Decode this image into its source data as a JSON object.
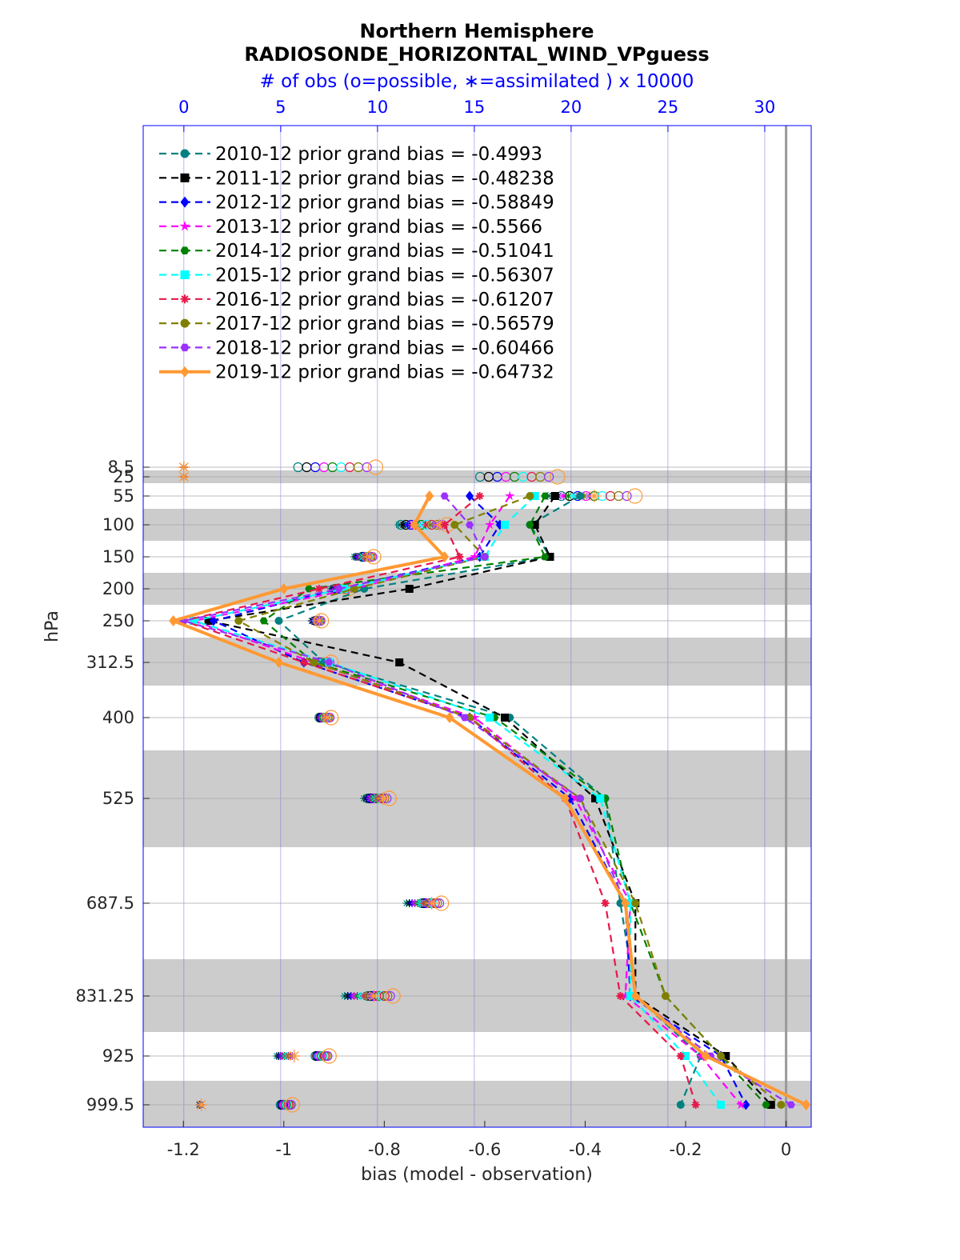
{
  "chart_data": {
    "type": "line",
    "title": "Northern Hemisphere",
    "subtitle": "RADIOSONDE_HORIZONTAL_WIND_VPguess",
    "top_axis_label": "# of obs (o=possible, ∗=assimilated ) x 10000",
    "xlabel": "bias (model - observation)",
    "ylabel": "hPa",
    "xlim": [
      -1.28,
      0.05
    ],
    "top_xlim": [
      -2.1,
      32.4
    ],
    "x_ticks": [
      "-1.2",
      "-1",
      "-0.8",
      "-0.6",
      "-0.4",
      "-0.2",
      "0"
    ],
    "top_ticks": [
      "0",
      "5",
      "10",
      "15",
      "20",
      "25",
      "30"
    ],
    "levels": [
      "8.5",
      "25",
      "55",
      "100",
      "150",
      "200",
      "250",
      "312.5",
      "400",
      "525",
      "687.5",
      "831.25",
      "925",
      "999.5"
    ],
    "bias_series": [
      {
        "name": "2010-12 prior grand bias = -0.4993",
        "color": "#008080",
        "marker": "circle",
        "style": "dashed",
        "values": [
          null,
          null,
          -0.41,
          -0.51,
          -0.47,
          -0.84,
          -1.01,
          -0.92,
          -0.55,
          -0.36,
          -0.33,
          -0.3,
          -0.17,
          -0.21
        ]
      },
      {
        "name": "2011-12 prior grand bias = -0.48238",
        "color": "#000000",
        "marker": "square",
        "style": "dashed",
        "values": [
          null,
          null,
          -0.46,
          -0.5,
          -0.47,
          -0.75,
          -1.15,
          -0.77,
          -0.56,
          -0.38,
          -0.3,
          -0.3,
          -0.12,
          -0.03
        ]
      },
      {
        "name": "2012-12 prior grand bias = -0.58849",
        "color": "#0000ff",
        "marker": "diamond",
        "style": "dashed",
        "values": [
          null,
          null,
          -0.63,
          -0.57,
          -0.61,
          -0.89,
          -1.14,
          -0.96,
          -0.63,
          -0.43,
          -0.32,
          -0.31,
          -0.13,
          -0.08
        ]
      },
      {
        "name": "2013-12 prior grand bias = -0.5566",
        "color": "#ff00ff",
        "marker": "star",
        "style": "dashed",
        "values": [
          null,
          null,
          -0.55,
          -0.59,
          -0.62,
          -0.86,
          -1.18,
          -0.94,
          -0.62,
          -0.42,
          -0.31,
          -0.32,
          -0.17,
          -0.09
        ]
      },
      {
        "name": "2014-12 prior grand bias = -0.51041",
        "color": "#008000",
        "marker": "hexagon",
        "style": "dashed",
        "values": [
          null,
          null,
          -0.48,
          -0.51,
          -0.48,
          -0.95,
          -1.04,
          -0.94,
          -0.58,
          -0.36,
          -0.31,
          -0.24,
          -0.13,
          -0.04
        ]
      },
      {
        "name": "2015-12 prior grand bias = -0.56307",
        "color": "#00ffff",
        "marker": "square",
        "style": "dashed",
        "values": [
          null,
          null,
          -0.5,
          -0.56,
          -0.6,
          -0.88,
          -1.18,
          -0.91,
          -0.59,
          -0.37,
          -0.31,
          -0.31,
          -0.2,
          -0.13
        ]
      },
      {
        "name": "2016-12 prior grand bias = -0.61207",
        "color": "#e6194b",
        "marker": "asterisk",
        "style": "dashed",
        "values": [
          null,
          null,
          -0.61,
          -0.68,
          -0.65,
          -0.93,
          -1.2,
          -0.96,
          -0.63,
          -0.44,
          -0.36,
          -0.33,
          -0.21,
          -0.18
        ]
      },
      {
        "name": "2017-12 prior grand bias = -0.56579",
        "color": "#808000",
        "marker": "circle",
        "style": "dashed",
        "values": [
          null,
          null,
          -0.51,
          -0.66,
          -0.6,
          -0.86,
          -1.09,
          -0.94,
          -0.63,
          -0.41,
          -0.3,
          -0.24,
          -0.13,
          -0.01
        ]
      },
      {
        "name": "2018-12 prior grand bias = -0.60466",
        "color": "#9b30ff",
        "marker": "hexagon",
        "style": "dashed",
        "values": [
          null,
          null,
          -0.68,
          -0.63,
          -0.6,
          -0.89,
          -1.2,
          -0.91,
          -0.64,
          -0.41,
          -0.32,
          -0.3,
          -0.15,
          0.01
        ]
      },
      {
        "name": "2019-12 prior grand bias = -0.64732",
        "color": "#ff9933",
        "marker": "diamond",
        "style": "solid",
        "values": [
          null,
          null,
          -0.71,
          -0.74,
          -0.68,
          -1.0,
          -1.22,
          -1.01,
          -0.67,
          -0.44,
          -0.32,
          -0.3,
          -0.16,
          0.04
        ]
      }
    ],
    "obs_count_ranges": [
      {
        "level": "8.5",
        "possible": [
          5.9,
          9.9
        ],
        "assimilated": [
          0.0,
          0.0
        ]
      },
      {
        "level": "25",
        "possible": [
          15.3,
          19.3
        ],
        "assimilated": [
          0.0,
          0.0
        ]
      },
      {
        "level": "55",
        "possible": [
          19.5,
          23.3
        ],
        "assimilated": [
          18.8,
          21.2
        ]
      },
      {
        "level": "100",
        "possible": [
          11.2,
          13.6
        ],
        "assimilated": [
          11.1,
          13.2
        ]
      },
      {
        "level": "150",
        "possible": [
          9.2,
          9.8
        ],
        "assimilated": [
          8.8,
          9.6
        ]
      },
      {
        "level": "200",
        "possible": [
          7.8,
          8.5
        ],
        "assimilated": [
          7.6,
          8.4
        ]
      },
      {
        "level": "250",
        "possible": [
          6.8,
          7.1
        ],
        "assimilated": [
          6.6,
          7.0
        ]
      },
      {
        "level": "312.5",
        "possible": [
          6.9,
          7.6
        ],
        "assimilated": [
          6.8,
          7.4
        ]
      },
      {
        "level": "400",
        "possible": [
          7.0,
          7.6
        ],
        "assimilated": [
          7.0,
          7.4
        ]
      },
      {
        "level": "525",
        "possible": [
          9.5,
          10.6
        ],
        "assimilated": [
          9.3,
          10.3
        ]
      },
      {
        "level": "687.5",
        "possible": [
          12.3,
          13.3
        ],
        "assimilated": [
          11.5,
          12.8
        ]
      },
      {
        "level": "831.25",
        "possible": [
          9.5,
          10.8
        ],
        "assimilated": [
          8.3,
          9.8
        ]
      },
      {
        "level": "925",
        "possible": [
          6.8,
          7.5
        ],
        "assimilated": [
          4.8,
          5.7
        ]
      },
      {
        "level": "999.5",
        "possible": [
          5.0,
          5.6
        ],
        "assimilated": [
          0.8,
          0.9
        ]
      }
    ]
  }
}
